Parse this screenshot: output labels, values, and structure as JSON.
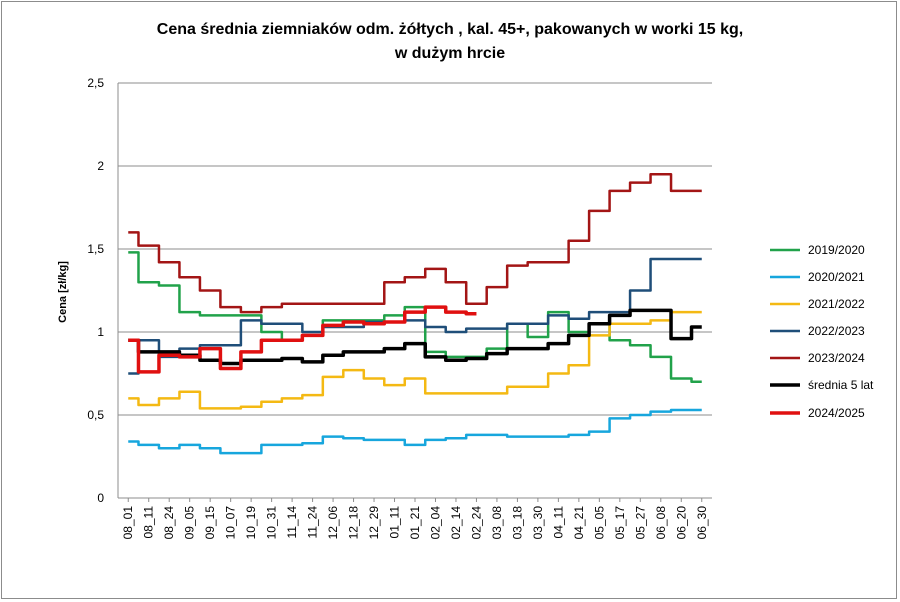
{
  "chart_data": {
    "type": "line",
    "title_lines": [
      "Cena średnia ziemniaków odm. żółtych , kal. 45+, pakowanych w worki 15 kg,",
      "w dużym hrcie"
    ],
    "ylabel": "Cena [zł/kg]",
    "xlabel": "",
    "ylim": [
      0,
      2.5
    ],
    "yticks": [
      "0",
      "0,5",
      "1",
      "1,5",
      "2",
      "2,5"
    ],
    "grid": "horizontal",
    "legend_position": "right",
    "categories": [
      "08_01",
      "08_11",
      "08_24",
      "09_05",
      "09_15",
      "10_07",
      "10_19",
      "10_31",
      "11_14",
      "11_24",
      "12_06",
      "12_18",
      "12_29",
      "01_11",
      "01_21",
      "02_04",
      "02_14",
      "02_24",
      "03_08",
      "03_18",
      "03_30",
      "04_11",
      "04_21",
      "05_05",
      "05_17",
      "05_27",
      "06_08",
      "06_20",
      "06_30"
    ],
    "series": [
      {
        "name": "2019/2020",
        "color": "#21a24a",
        "width": 2.5,
        "values": [
          1.48,
          1.3,
          1.28,
          1.12,
          1.1,
          1.1,
          1.1,
          1.0,
          0.95,
          0.98,
          1.07,
          1.07,
          1.07,
          1.1,
          1.15,
          0.88,
          0.85,
          0.85,
          0.9,
          1.05,
          0.97,
          1.12,
          1.0,
          1.05,
          0.95,
          0.92,
          0.85,
          0.72,
          0.7
        ]
      },
      {
        "name": "2020/2021",
        "color": "#17a6dd",
        "width": 2.5,
        "values": [
          0.34,
          0.32,
          0.3,
          0.32,
          0.3,
          0.27,
          0.27,
          0.32,
          0.32,
          0.33,
          0.37,
          0.36,
          0.35,
          0.35,
          0.32,
          0.35,
          0.36,
          0.38,
          0.38,
          0.37,
          0.37,
          0.37,
          0.38,
          0.4,
          0.48,
          0.5,
          0.52,
          0.53,
          0.53
        ]
      },
      {
        "name": "2021/2022",
        "color": "#f4b913",
        "width": 2.5,
        "values": [
          0.6,
          0.56,
          0.6,
          0.64,
          0.54,
          0.54,
          0.55,
          0.58,
          0.6,
          0.62,
          0.73,
          0.77,
          0.72,
          0.68,
          0.72,
          0.63,
          0.63,
          0.63,
          0.63,
          0.67,
          0.67,
          0.75,
          0.8,
          0.98,
          1.05,
          1.05,
          1.07,
          1.12,
          1.12
        ]
      },
      {
        "name": "2022/2023",
        "color": "#1f4e79",
        "width": 2.5,
        "values": [
          0.75,
          0.95,
          0.85,
          0.9,
          0.92,
          0.92,
          1.07,
          1.05,
          1.05,
          1.0,
          1.03,
          1.03,
          1.06,
          1.06,
          1.07,
          1.03,
          1.0,
          1.02,
          1.02,
          1.05,
          1.05,
          1.1,
          1.08,
          1.12,
          1.12,
          1.25,
          1.44,
          1.44,
          1.44
        ]
      },
      {
        "name": "2023/2024",
        "color": "#a31515",
        "width": 2.5,
        "values": [
          1.6,
          1.52,
          1.42,
          1.33,
          1.25,
          1.15,
          1.12,
          1.15,
          1.17,
          1.17,
          1.17,
          1.17,
          1.17,
          1.3,
          1.33,
          1.38,
          1.3,
          1.17,
          1.27,
          1.4,
          1.42,
          1.42,
          1.55,
          1.73,
          1.85,
          1.9,
          1.95,
          1.85,
          1.85
        ]
      },
      {
        "name": "średnia 5 lat",
        "color": "#000000",
        "width": 3.5,
        "values": [
          0.95,
          0.88,
          0.88,
          0.86,
          0.83,
          0.81,
          0.83,
          0.83,
          0.84,
          0.82,
          0.86,
          0.88,
          0.88,
          0.9,
          0.93,
          0.85,
          0.83,
          0.84,
          0.87,
          0.9,
          0.9,
          0.93,
          0.98,
          1.05,
          1.1,
          1.13,
          1.13,
          0.96,
          1.03
        ]
      },
      {
        "name": "2024/2025",
        "color": "#e01010",
        "width": 3.5,
        "values": [
          0.95,
          0.76,
          0.86,
          0.85,
          0.9,
          0.78,
          0.88,
          0.95,
          0.95,
          0.98,
          1.04,
          1.06,
          1.05,
          1.06,
          1.12,
          1.15,
          1.12,
          1.11,
          null,
          null,
          null,
          null,
          null,
          null,
          null,
          null,
          null,
          null,
          null
        ]
      }
    ]
  }
}
